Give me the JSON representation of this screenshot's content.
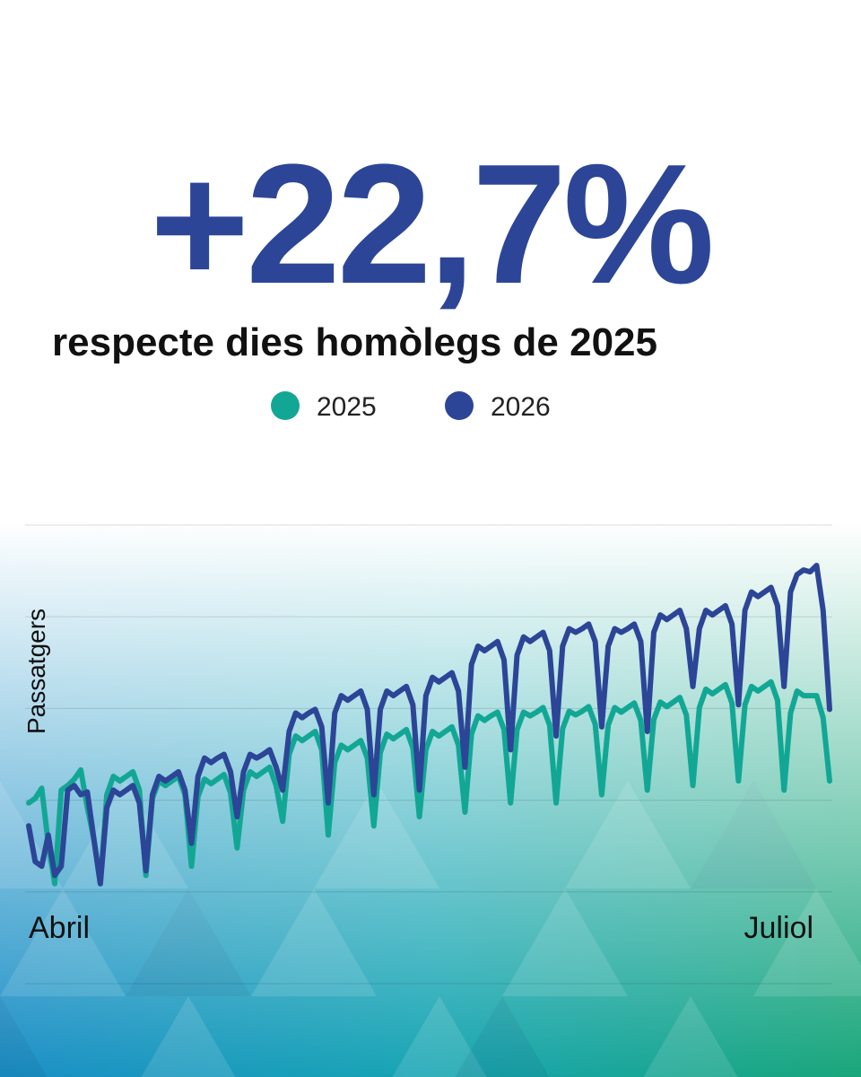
{
  "chart_data": {
    "type": "line",
    "title": "+22,7%",
    "subtitle": "respecte dies homòlegs de 2025",
    "y_label": "Passatgers",
    "categories": [
      "Abril",
      null,
      null,
      null,
      null,
      null,
      null,
      null,
      null,
      null,
      null,
      null,
      null,
      null,
      null,
      null,
      null,
      null,
      null,
      null,
      null,
      null,
      null,
      null,
      null,
      null,
      null,
      null,
      null,
      null,
      null,
      null,
      null,
      null,
      null,
      null,
      null,
      null,
      null,
      null,
      null,
      null,
      null,
      null,
      null,
      null,
      null,
      null,
      null,
      null,
      null,
      null,
      null,
      null,
      null,
      null,
      null,
      null,
      null,
      null,
      null,
      null,
      null,
      null,
      null,
      null,
      null,
      null,
      null,
      null,
      null,
      null,
      null,
      null,
      null,
      null,
      null,
      null,
      null,
      null,
      null,
      null,
      null,
      null,
      null,
      null,
      null,
      null,
      null,
      null,
      null,
      null,
      null,
      null,
      null,
      null,
      null,
      null,
      null,
      null,
      null,
      null,
      null,
      null,
      null,
      null,
      null,
      null,
      null,
      null,
      null,
      null,
      null,
      null,
      null,
      null,
      null,
      null,
      null,
      null,
      null,
      null,
      null,
      "Juliol"
    ],
    "series": [
      {
        "name": "2025",
        "color": "#12a795",
        "values": [
          197,
          202,
          213,
          153,
          109,
          211,
          216,
          223,
          233,
          192,
          158,
          109,
          206,
          226,
          221,
          226,
          231,
          211,
          118,
          202,
          221,
          216,
          221,
          226,
          206,
          128,
          204,
          223,
          218,
          223,
          228,
          208,
          148,
          211,
          231,
          226,
          231,
          236,
          216,
          177,
          250,
          270,
          265,
          270,
          275,
          255,
          162,
          241,
          260,
          255,
          260,
          265,
          246,
          172,
          252,
          272,
          267,
          272,
          277,
          257,
          182,
          255,
          275,
          270,
          275,
          280,
          260,
          187,
          272,
          292,
          287,
          292,
          296,
          277,
          197,
          277,
          296,
          292,
          296,
          301,
          282,
          197,
          278,
          297,
          293,
          297,
          302,
          283,
          206,
          282,
          301,
          296,
          301,
          306,
          287,
          211,
          288,
          307,
          302,
          307,
          312,
          293,
          216,
          301,
          321,
          316,
          321,
          326,
          306,
          221,
          304,
          324,
          319,
          324,
          329,
          309,
          211,
          295,
          319,
          314,
          314,
          314,
          290,
          221
        ]
      },
      {
        "name": "2026",
        "color": "#2c4597",
        "values": [
          172,
          133,
          128,
          162,
          118,
          128,
          211,
          216,
          206,
          209,
          158,
          109,
          192,
          211,
          206,
          211,
          216,
          197,
          123,
          206,
          226,
          221,
          226,
          231,
          211,
          153,
          226,
          246,
          241,
          246,
          250,
          231,
          182,
          231,
          250,
          246,
          250,
          255,
          236,
          211,
          275,
          295,
          290,
          295,
          299,
          280,
          197,
          295,
          314,
          309,
          314,
          319,
          299,
          206,
          299,
          319,
          314,
          319,
          324,
          304,
          211,
          314,
          334,
          329,
          334,
          339,
          319,
          236,
          348,
          368,
          363,
          368,
          373,
          353,
          255,
          358,
          378,
          373,
          378,
          383,
          363,
          270,
          368,
          387,
          383,
          387,
          392,
          373,
          280,
          368,
          387,
          383,
          387,
          392,
          373,
          275,
          383,
          402,
          397,
          402,
          407,
          387,
          324,
          387,
          407,
          402,
          407,
          412,
          392,
          304,
          407,
          427,
          422,
          427,
          432,
          412,
          324,
          427,
          446,
          451,
          449,
          456,
          407,
          299
        ]
      }
    ],
    "ylim": [
      0,
      500
    ],
    "yticks": [
      0,
      100,
      200,
      300,
      400,
      500
    ],
    "grid": true,
    "ytick_labels": false,
    "legend": "top"
  }
}
